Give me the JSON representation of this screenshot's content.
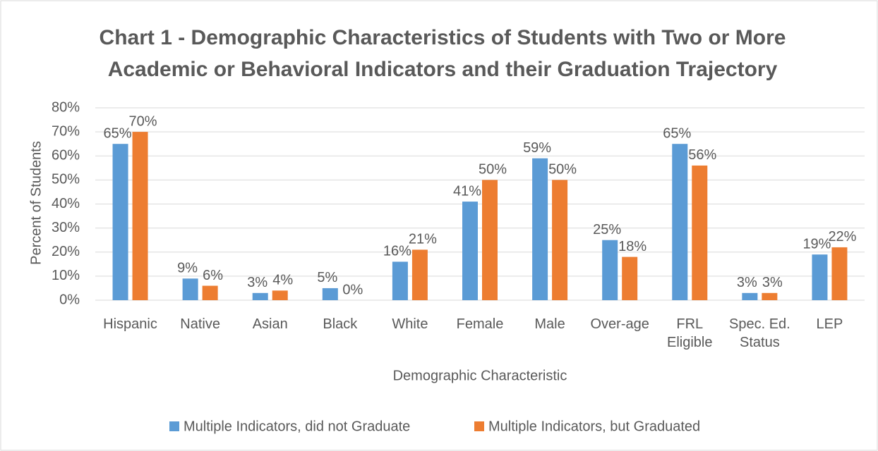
{
  "chart_data": {
    "type": "bar",
    "title": [
      "Chart 1 - Demographic Characteristics of Students with Two or More",
      "Academic or Behavioral Indicators and their Graduation Trajectory"
    ],
    "x_label": "Demographic Characteristic",
    "y_label": "Percent of Students",
    "categories": [
      "Hispanic",
      "Native",
      "Asian",
      "Black",
      "White",
      "Female",
      "Male",
      "Over-age",
      "FRL Eligible",
      "Spec. Ed. Status",
      "LEP"
    ],
    "series": [
      {
        "name": "Multiple Indicators, did not Graduate",
        "color": "#5b9bd5",
        "values": [
          65,
          9,
          3,
          5,
          16,
          41,
          59,
          25,
          65,
          3,
          19
        ],
        "value_labels": [
          "65%",
          "9%",
          "3%",
          "5%",
          "16%",
          "41%",
          "59%",
          "25%",
          "65%",
          "3%",
          "19%"
        ]
      },
      {
        "name": "Multiple Indicators, but Graduated",
        "color": "#ed7d31",
        "values": [
          70,
          6,
          4,
          0,
          21,
          50,
          50,
          18,
          56,
          3,
          22
        ],
        "value_labels": [
          "70%",
          "6%",
          "4%",
          "0%",
          "21%",
          "50%",
          "50%",
          "18%",
          "56%",
          "3%",
          "22%"
        ]
      }
    ],
    "ylim": [
      0,
      80
    ],
    "yticks": [
      {
        "value": 0,
        "label": "0%"
      },
      {
        "value": 10,
        "label": "10%"
      },
      {
        "value": 20,
        "label": "20%"
      },
      {
        "value": 30,
        "label": "30%"
      },
      {
        "value": 40,
        "label": "40%"
      },
      {
        "value": 50,
        "label": "50%"
      },
      {
        "value": 60,
        "label": "60%"
      },
      {
        "value": 70,
        "label": "70%"
      },
      {
        "value": 80,
        "label": "80%"
      }
    ],
    "grid": true,
    "legend": "bottom"
  }
}
